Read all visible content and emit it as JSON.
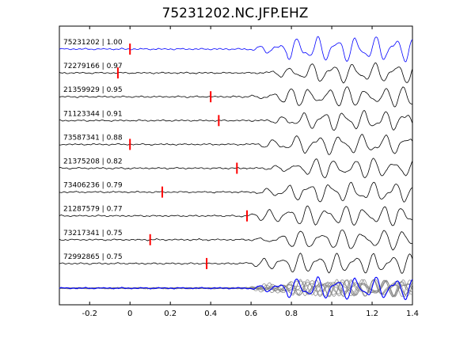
{
  "chart_data": {
    "type": "line",
    "title": "75231202.NC.JFP.EHZ",
    "xlabel": "",
    "ylabel": "",
    "xlim": [
      -0.35,
      1.4
    ],
    "x_ticks": [
      -0.2,
      0,
      0.2,
      0.4,
      0.6,
      0.8,
      1,
      1.2,
      1.4
    ],
    "x_tick_labels": [
      "-0.2",
      "0",
      "0.2",
      "0.4",
      "0.6",
      "0.8",
      "1",
      "1.2",
      "1.4"
    ],
    "grid": false,
    "series": [
      {
        "label": "75231202 | 1.00",
        "pick": 0.0,
        "color": "#0000ff"
      },
      {
        "label": "72279166 | 0.97",
        "pick": -0.06,
        "color": "#000000"
      },
      {
        "label": "21359929 | 0.95",
        "pick": 0.4,
        "color": "#000000"
      },
      {
        "label": "71123344 | 0.91",
        "pick": 0.44,
        "color": "#000000"
      },
      {
        "label": "73587341 | 0.88",
        "pick": 0.0,
        "color": "#000000"
      },
      {
        "label": "21375208 | 0.82",
        "pick": 0.53,
        "color": "#000000"
      },
      {
        "label": "73406236 | 0.79",
        "pick": 0.16,
        "color": "#000000"
      },
      {
        "label": "21287579 | 0.77",
        "pick": 0.58,
        "color": "#000000"
      },
      {
        "label": "73217341 | 0.75",
        "pick": 0.1,
        "color": "#000000"
      },
      {
        "label": "72992865 | 0.75",
        "pick": 0.38,
        "color": "#000000"
      }
    ],
    "stack_color": "#808080",
    "pick_color": "#ff0000"
  }
}
